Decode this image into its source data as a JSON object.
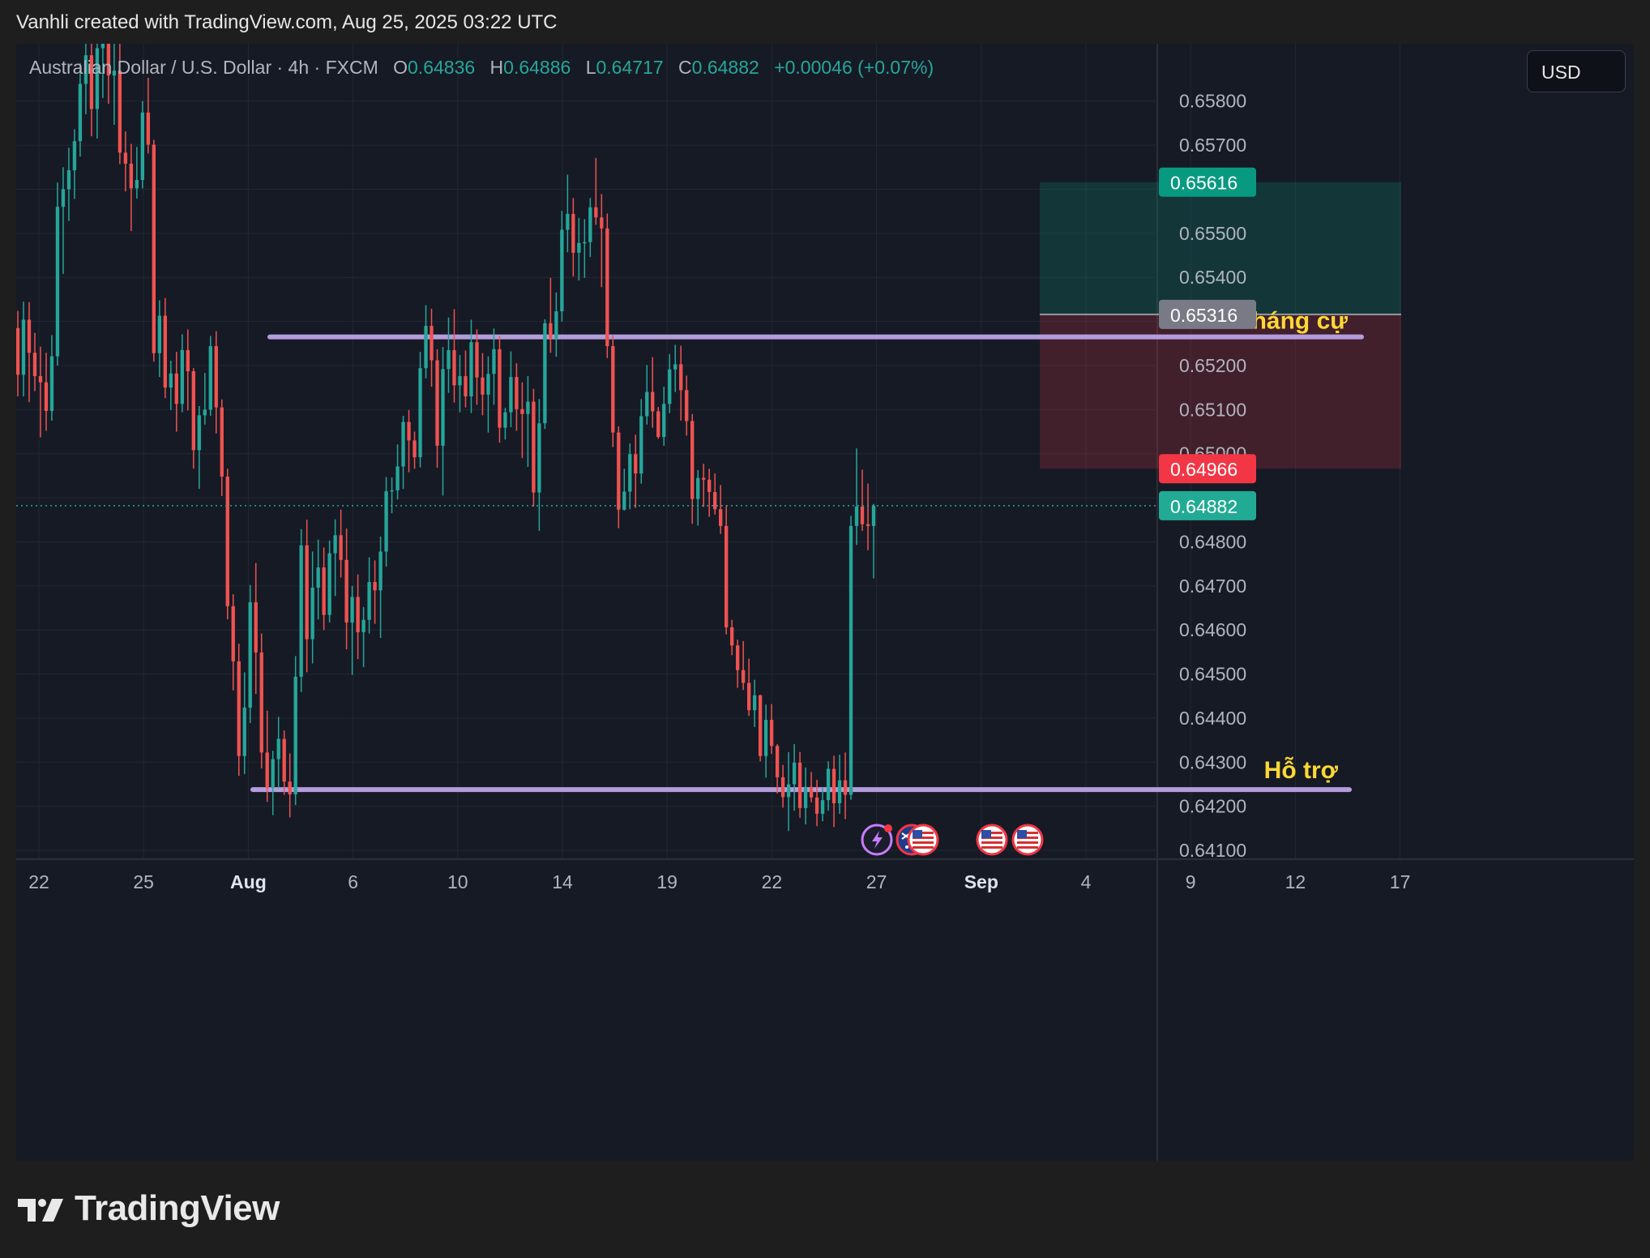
{
  "header": {
    "text": "Vanhli created with TradingView.com, Aug 25, 2025 03:22 UTC"
  },
  "legend": {
    "symbol": "Australian Dollar / U.S. Dollar · 4h · FXCM",
    "o_label": "O",
    "o_value": "0.64836",
    "h_label": "H",
    "h_value": "0.64886",
    "l_label": "L",
    "l_value": "0.64717",
    "c_label": "C",
    "c_value": "0.64882",
    "change": "+0.00046 (+0.07%)"
  },
  "currency_button": {
    "label": "USD"
  },
  "price_axis": {
    "ticks": [
      "0.65800",
      "0.65700",
      "0.65600",
      "0.65500",
      "0.65400",
      "0.65300",
      "0.65200",
      "0.65100",
      "0.65000",
      "0.64900",
      "0.64800",
      "0.64700",
      "0.64600",
      "0.64500",
      "0.64400",
      "0.64300",
      "0.64200",
      "0.64100"
    ],
    "badges": [
      {
        "label": "0.65616",
        "color": "#089981"
      },
      {
        "label": "0.65316",
        "color": "#787b86"
      },
      {
        "label": "0.64966",
        "color": "#f23645"
      },
      {
        "label": "0.64882",
        "color": "#22ab94"
      }
    ]
  },
  "time_axis": {
    "labels": [
      "22",
      "25",
      "Aug",
      "6",
      "10",
      "14",
      "19",
      "22",
      "27",
      "Sep",
      "4",
      "9",
      "12",
      "17"
    ]
  },
  "annotations": {
    "resistance_label": "Kháng cự",
    "support_label": "Hỗ trợ"
  },
  "position_tool": {
    "target": 0.65616,
    "entry": 0.65316,
    "stop": 0.64966
  },
  "event_markers": [
    "lightning-icon",
    "au-flag-icon",
    "us-flag-icon",
    "us-flag-icon",
    "us-flag-icon"
  ],
  "chart_data": {
    "type": "candlestick",
    "symbol": "AUDUSD",
    "interval": "4h",
    "source": "FXCM",
    "ylim": [
      0.6408,
      0.6593
    ],
    "current_price": 0.64882,
    "last_candle": {
      "open": 0.64836,
      "high": 0.64886,
      "low": 0.64717,
      "close": 0.64882
    },
    "resistance": 0.65265,
    "support": 0.64238,
    "colors": {
      "up": "#26a69a",
      "down": "#ef5350",
      "level_line": "#b39ddb",
      "label": "#fdd835"
    },
    "candles": [
      {
        "o": 0.65285,
        "h": 0.65324,
        "l": 0.6513,
        "c": 0.65179
      },
      {
        "o": 0.65179,
        "h": 0.65345,
        "l": 0.6513,
        "c": 0.65304
      },
      {
        "o": 0.65304,
        "h": 0.65344,
        "l": 0.65117,
        "c": 0.65229
      },
      {
        "o": 0.65229,
        "h": 0.65274,
        "l": 0.65142,
        "c": 0.65176
      },
      {
        "o": 0.65176,
        "h": 0.65243,
        "l": 0.65037,
        "c": 0.65162
      },
      {
        "o": 0.65162,
        "h": 0.65229,
        "l": 0.65052,
        "c": 0.65097
      },
      {
        "o": 0.65097,
        "h": 0.65269,
        "l": 0.65075,
        "c": 0.65221
      },
      {
        "o": 0.65221,
        "h": 0.65615,
        "l": 0.652,
        "c": 0.6556
      },
      {
        "o": 0.6556,
        "h": 0.6565,
        "l": 0.65408,
        "c": 0.656
      },
      {
        "o": 0.656,
        "h": 0.65694,
        "l": 0.65528,
        "c": 0.65643
      },
      {
        "o": 0.65643,
        "h": 0.65736,
        "l": 0.65578,
        "c": 0.65709
      },
      {
        "o": 0.65709,
        "h": 0.65886,
        "l": 0.65674,
        "c": 0.65839
      },
      {
        "o": 0.65839,
        "h": 0.65944,
        "l": 0.6577,
        "c": 0.65904
      },
      {
        "o": 0.65904,
        "h": 0.6594,
        "l": 0.6572,
        "c": 0.65782
      },
      {
        "o": 0.65782,
        "h": 0.65956,
        "l": 0.65715,
        "c": 0.6592
      },
      {
        "o": 0.6592,
        "h": 0.66035,
        "l": 0.65807,
        "c": 0.65958
      },
      {
        "o": 0.65958,
        "h": 0.66042,
        "l": 0.65794,
        "c": 0.65858
      },
      {
        "o": 0.65858,
        "h": 0.6595,
        "l": 0.65746,
        "c": 0.65869
      },
      {
        "o": 0.65869,
        "h": 0.65935,
        "l": 0.65657,
        "c": 0.65683
      },
      {
        "o": 0.65683,
        "h": 0.65731,
        "l": 0.65595,
        "c": 0.65658
      },
      {
        "o": 0.65658,
        "h": 0.65703,
        "l": 0.65505,
        "c": 0.65602
      },
      {
        "o": 0.65602,
        "h": 0.65696,
        "l": 0.65579,
        "c": 0.65621
      },
      {
        "o": 0.65621,
        "h": 0.658,
        "l": 0.65602,
        "c": 0.65774
      },
      {
        "o": 0.65774,
        "h": 0.65853,
        "l": 0.65681,
        "c": 0.65701
      },
      {
        "o": 0.65701,
        "h": 0.65712,
        "l": 0.65209,
        "c": 0.65228
      },
      {
        "o": 0.65228,
        "h": 0.65348,
        "l": 0.65174,
        "c": 0.65313
      },
      {
        "o": 0.65313,
        "h": 0.65353,
        "l": 0.65126,
        "c": 0.6515
      },
      {
        "o": 0.6515,
        "h": 0.65211,
        "l": 0.65099,
        "c": 0.65182
      },
      {
        "o": 0.65182,
        "h": 0.65231,
        "l": 0.6505,
        "c": 0.65113
      },
      {
        "o": 0.65113,
        "h": 0.65271,
        "l": 0.65094,
        "c": 0.65235
      },
      {
        "o": 0.65235,
        "h": 0.65282,
        "l": 0.65098,
        "c": 0.65187
      },
      {
        "o": 0.65187,
        "h": 0.65194,
        "l": 0.64966,
        "c": 0.65008
      },
      {
        "o": 0.65008,
        "h": 0.65108,
        "l": 0.6492,
        "c": 0.65087
      },
      {
        "o": 0.65087,
        "h": 0.65183,
        "l": 0.65066,
        "c": 0.651
      },
      {
        "o": 0.651,
        "h": 0.65267,
        "l": 0.65086,
        "c": 0.65244
      },
      {
        "o": 0.65244,
        "h": 0.65278,
        "l": 0.65046,
        "c": 0.65105
      },
      {
        "o": 0.65105,
        "h": 0.65123,
        "l": 0.64904,
        "c": 0.64948
      },
      {
        "o": 0.64948,
        "h": 0.64966,
        "l": 0.64624,
        "c": 0.64654
      },
      {
        "o": 0.64654,
        "h": 0.64681,
        "l": 0.64463,
        "c": 0.64529
      },
      {
        "o": 0.64529,
        "h": 0.64569,
        "l": 0.64269,
        "c": 0.64314
      },
      {
        "o": 0.64314,
        "h": 0.64504,
        "l": 0.64273,
        "c": 0.64424
      },
      {
        "o": 0.64424,
        "h": 0.64702,
        "l": 0.64389,
        "c": 0.64663
      },
      {
        "o": 0.64663,
        "h": 0.64752,
        "l": 0.64455,
        "c": 0.64549
      },
      {
        "o": 0.64549,
        "h": 0.64592,
        "l": 0.64286,
        "c": 0.64322
      },
      {
        "o": 0.64322,
        "h": 0.64417,
        "l": 0.6421,
        "c": 0.64242
      },
      {
        "o": 0.64242,
        "h": 0.64326,
        "l": 0.6418,
        "c": 0.64307
      },
      {
        "o": 0.64307,
        "h": 0.64403,
        "l": 0.64241,
        "c": 0.64353
      },
      {
        "o": 0.64353,
        "h": 0.64372,
        "l": 0.64226,
        "c": 0.64256
      },
      {
        "o": 0.64256,
        "h": 0.6432,
        "l": 0.64175,
        "c": 0.64227
      },
      {
        "o": 0.64227,
        "h": 0.64541,
        "l": 0.64203,
        "c": 0.64494
      },
      {
        "o": 0.64494,
        "h": 0.64829,
        "l": 0.64459,
        "c": 0.64792
      },
      {
        "o": 0.64792,
        "h": 0.6485,
        "l": 0.64504,
        "c": 0.64579
      },
      {
        "o": 0.64579,
        "h": 0.64778,
        "l": 0.64524,
        "c": 0.64696
      },
      {
        "o": 0.64696,
        "h": 0.64805,
        "l": 0.64624,
        "c": 0.64742
      },
      {
        "o": 0.64742,
        "h": 0.64787,
        "l": 0.646,
        "c": 0.64634
      },
      {
        "o": 0.64634,
        "h": 0.64803,
        "l": 0.64617,
        "c": 0.64774
      },
      {
        "o": 0.64774,
        "h": 0.64851,
        "l": 0.64677,
        "c": 0.64815
      },
      {
        "o": 0.64815,
        "h": 0.64873,
        "l": 0.64719,
        "c": 0.64759
      },
      {
        "o": 0.64759,
        "h": 0.6483,
        "l": 0.64556,
        "c": 0.64617
      },
      {
        "o": 0.64617,
        "h": 0.647,
        "l": 0.64498,
        "c": 0.64675
      },
      {
        "o": 0.64675,
        "h": 0.64726,
        "l": 0.64534,
        "c": 0.64595
      },
      {
        "o": 0.64595,
        "h": 0.64652,
        "l": 0.64516,
        "c": 0.64623
      },
      {
        "o": 0.64623,
        "h": 0.64765,
        "l": 0.64592,
        "c": 0.64709
      },
      {
        "o": 0.64709,
        "h": 0.64758,
        "l": 0.64614,
        "c": 0.6469
      },
      {
        "o": 0.6469,
        "h": 0.64812,
        "l": 0.64582,
        "c": 0.64778
      },
      {
        "o": 0.64778,
        "h": 0.64947,
        "l": 0.64744,
        "c": 0.64915
      },
      {
        "o": 0.64915,
        "h": 0.64946,
        "l": 0.64865,
        "c": 0.64917
      },
      {
        "o": 0.64917,
        "h": 0.65021,
        "l": 0.64896,
        "c": 0.64971
      },
      {
        "o": 0.64971,
        "h": 0.65086,
        "l": 0.6492,
        "c": 0.65072
      },
      {
        "o": 0.65072,
        "h": 0.65099,
        "l": 0.64958,
        "c": 0.6503
      },
      {
        "o": 0.6503,
        "h": 0.6505,
        "l": 0.64966,
        "c": 0.64992
      },
      {
        "o": 0.64992,
        "h": 0.65231,
        "l": 0.64969,
        "c": 0.65194
      },
      {
        "o": 0.65194,
        "h": 0.65337,
        "l": 0.65171,
        "c": 0.6529
      },
      {
        "o": 0.6529,
        "h": 0.65329,
        "l": 0.65152,
        "c": 0.65212
      },
      {
        "o": 0.65212,
        "h": 0.65237,
        "l": 0.64968,
        "c": 0.65018
      },
      {
        "o": 0.65018,
        "h": 0.65242,
        "l": 0.64905,
        "c": 0.65192
      },
      {
        "o": 0.65192,
        "h": 0.65309,
        "l": 0.65138,
        "c": 0.65235
      },
      {
        "o": 0.65235,
        "h": 0.65328,
        "l": 0.65116,
        "c": 0.65155
      },
      {
        "o": 0.65155,
        "h": 0.65224,
        "l": 0.65094,
        "c": 0.65176
      },
      {
        "o": 0.65176,
        "h": 0.65234,
        "l": 0.65105,
        "c": 0.6513
      },
      {
        "o": 0.6513,
        "h": 0.65304,
        "l": 0.65092,
        "c": 0.65253
      },
      {
        "o": 0.65253,
        "h": 0.65282,
        "l": 0.65111,
        "c": 0.65173
      },
      {
        "o": 0.65173,
        "h": 0.65228,
        "l": 0.65087,
        "c": 0.65134
      },
      {
        "o": 0.65134,
        "h": 0.65221,
        "l": 0.65048,
        "c": 0.65181
      },
      {
        "o": 0.65181,
        "h": 0.65284,
        "l": 0.65111,
        "c": 0.65237
      },
      {
        "o": 0.65237,
        "h": 0.65267,
        "l": 0.65025,
        "c": 0.65059
      },
      {
        "o": 0.65059,
        "h": 0.65104,
        "l": 0.65032,
        "c": 0.65094
      },
      {
        "o": 0.65094,
        "h": 0.65232,
        "l": 0.6506,
        "c": 0.65174
      },
      {
        "o": 0.65174,
        "h": 0.65205,
        "l": 0.65052,
        "c": 0.65101
      },
      {
        "o": 0.65101,
        "h": 0.65162,
        "l": 0.6499,
        "c": 0.6509
      },
      {
        "o": 0.6509,
        "h": 0.65176,
        "l": 0.6497,
        "c": 0.65118
      },
      {
        "o": 0.65118,
        "h": 0.65147,
        "l": 0.6488,
        "c": 0.64912
      },
      {
        "o": 0.64912,
        "h": 0.65124,
        "l": 0.64825,
        "c": 0.65069
      },
      {
        "o": 0.65069,
        "h": 0.65305,
        "l": 0.65056,
        "c": 0.65296
      },
      {
        "o": 0.65296,
        "h": 0.65399,
        "l": 0.65229,
        "c": 0.65261
      },
      {
        "o": 0.65261,
        "h": 0.65366,
        "l": 0.6522,
        "c": 0.65323
      },
      {
        "o": 0.65323,
        "h": 0.65551,
        "l": 0.653,
        "c": 0.65508
      },
      {
        "o": 0.65508,
        "h": 0.65633,
        "l": 0.65457,
        "c": 0.65544
      },
      {
        "o": 0.65544,
        "h": 0.6558,
        "l": 0.65402,
        "c": 0.65456
      },
      {
        "o": 0.65456,
        "h": 0.65535,
        "l": 0.65393,
        "c": 0.65478
      },
      {
        "o": 0.65478,
        "h": 0.65532,
        "l": 0.65399,
        "c": 0.6548
      },
      {
        "o": 0.6548,
        "h": 0.6558,
        "l": 0.65446,
        "c": 0.65559
      },
      {
        "o": 0.65559,
        "h": 0.65671,
        "l": 0.65519,
        "c": 0.65536
      },
      {
        "o": 0.65536,
        "h": 0.65589,
        "l": 0.65378,
        "c": 0.65511
      },
      {
        "o": 0.65511,
        "h": 0.65545,
        "l": 0.65217,
        "c": 0.65244
      },
      {
        "o": 0.65244,
        "h": 0.65269,
        "l": 0.65015,
        "c": 0.65048
      },
      {
        "o": 0.65048,
        "h": 0.65062,
        "l": 0.64831,
        "c": 0.64873
      },
      {
        "o": 0.64873,
        "h": 0.64966,
        "l": 0.64871,
        "c": 0.64914
      },
      {
        "o": 0.64914,
        "h": 0.65023,
        "l": 0.64874,
        "c": 0.64999
      },
      {
        "o": 0.64999,
        "h": 0.65043,
        "l": 0.64877,
        "c": 0.64955
      },
      {
        "o": 0.64955,
        "h": 0.65124,
        "l": 0.64932,
        "c": 0.65085
      },
      {
        "o": 0.65085,
        "h": 0.65201,
        "l": 0.65066,
        "c": 0.6514
      },
      {
        "o": 0.6514,
        "h": 0.65219,
        "l": 0.65059,
        "c": 0.65096
      },
      {
        "o": 0.65096,
        "h": 0.65106,
        "l": 0.65034,
        "c": 0.65038
      },
      {
        "o": 0.65038,
        "h": 0.65152,
        "l": 0.65018,
        "c": 0.65113
      },
      {
        "o": 0.65113,
        "h": 0.65226,
        "l": 0.65092,
        "c": 0.65191
      },
      {
        "o": 0.65191,
        "h": 0.65247,
        "l": 0.6514,
        "c": 0.65203
      },
      {
        "o": 0.65203,
        "h": 0.65245,
        "l": 0.65075,
        "c": 0.65144
      },
      {
        "o": 0.65144,
        "h": 0.65177,
        "l": 0.65041,
        "c": 0.65074
      },
      {
        "o": 0.65074,
        "h": 0.6509,
        "l": 0.64841,
        "c": 0.64897
      },
      {
        "o": 0.64897,
        "h": 0.64963,
        "l": 0.64837,
        "c": 0.64945
      },
      {
        "o": 0.64945,
        "h": 0.64977,
        "l": 0.64879,
        "c": 0.64941
      },
      {
        "o": 0.64941,
        "h": 0.64966,
        "l": 0.64857,
        "c": 0.64913
      },
      {
        "o": 0.64913,
        "h": 0.64955,
        "l": 0.64862,
        "c": 0.64874
      },
      {
        "o": 0.64874,
        "h": 0.64929,
        "l": 0.64818,
        "c": 0.64836
      },
      {
        "o": 0.64836,
        "h": 0.64883,
        "l": 0.6459,
        "c": 0.64606
      },
      {
        "o": 0.64606,
        "h": 0.64623,
        "l": 0.64543,
        "c": 0.64565
      },
      {
        "o": 0.64565,
        "h": 0.64578,
        "l": 0.64469,
        "c": 0.64509
      },
      {
        "o": 0.64509,
        "h": 0.64575,
        "l": 0.64464,
        "c": 0.6448
      },
      {
        "o": 0.6448,
        "h": 0.64535,
        "l": 0.64405,
        "c": 0.64418
      },
      {
        "o": 0.64418,
        "h": 0.64487,
        "l": 0.6438,
        "c": 0.64452
      },
      {
        "o": 0.64452,
        "h": 0.64453,
        "l": 0.64302,
        "c": 0.64314
      },
      {
        "o": 0.64314,
        "h": 0.64431,
        "l": 0.64265,
        "c": 0.64396
      },
      {
        "o": 0.64396,
        "h": 0.64432,
        "l": 0.64319,
        "c": 0.64337
      },
      {
        "o": 0.64337,
        "h": 0.64341,
        "l": 0.64229,
        "c": 0.64266
      },
      {
        "o": 0.64266,
        "h": 0.64294,
        "l": 0.64197,
        "c": 0.64221
      },
      {
        "o": 0.64221,
        "h": 0.64323,
        "l": 0.64144,
        "c": 0.6425
      },
      {
        "o": 0.6425,
        "h": 0.64341,
        "l": 0.6419,
        "c": 0.64299
      },
      {
        "o": 0.64299,
        "h": 0.64323,
        "l": 0.64174,
        "c": 0.64196
      },
      {
        "o": 0.64196,
        "h": 0.64288,
        "l": 0.64159,
        "c": 0.64244
      },
      {
        "o": 0.64244,
        "h": 0.64278,
        "l": 0.64209,
        "c": 0.6422
      },
      {
        "o": 0.6422,
        "h": 0.6426,
        "l": 0.64155,
        "c": 0.64183
      },
      {
        "o": 0.64183,
        "h": 0.64242,
        "l": 0.64166,
        "c": 0.64214
      },
      {
        "o": 0.64214,
        "h": 0.64302,
        "l": 0.6419,
        "c": 0.64285
      },
      {
        "o": 0.64285,
        "h": 0.64315,
        "l": 0.64153,
        "c": 0.64207
      },
      {
        "o": 0.64207,
        "h": 0.64317,
        "l": 0.64183,
        "c": 0.64259
      },
      {
        "o": 0.64259,
        "h": 0.64322,
        "l": 0.64171,
        "c": 0.64226
      },
      {
        "o": 0.64226,
        "h": 0.64859,
        "l": 0.64215,
        "c": 0.64836
      },
      {
        "o": 0.64836,
        "h": 0.65012,
        "l": 0.64793,
        "c": 0.6488
      },
      {
        "o": 0.6488,
        "h": 0.64964,
        "l": 0.64825,
        "c": 0.6484
      },
      {
        "o": 0.6484,
        "h": 0.64932,
        "l": 0.64781,
        "c": 0.64836
      },
      {
        "o": 0.64836,
        "h": 0.64886,
        "l": 0.64717,
        "c": 0.64882
      }
    ]
  }
}
